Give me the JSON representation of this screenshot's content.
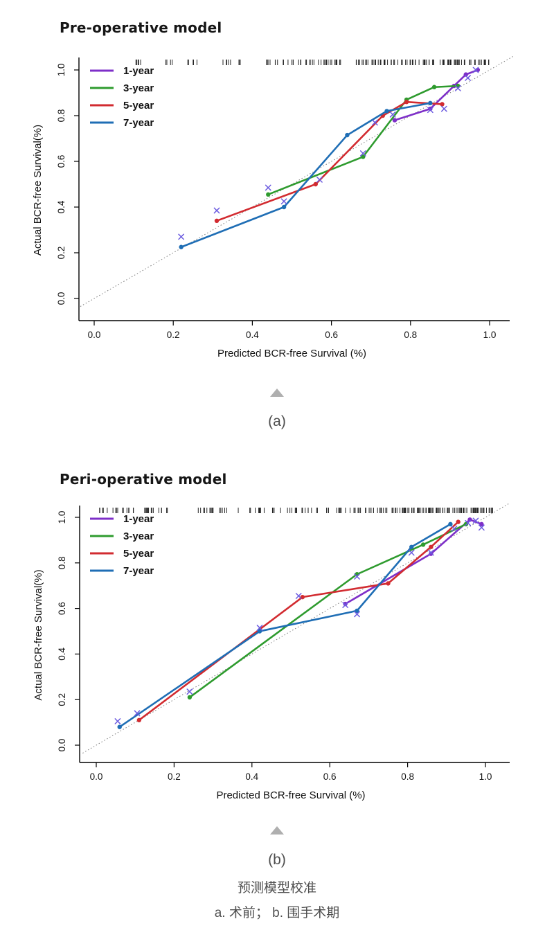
{
  "page": {
    "background": "#ffffff"
  },
  "panels": {
    "a_label": "(a)",
    "b_label": "(b)"
  },
  "caption": {
    "line1": "预测模型校准",
    "line2": "a. 术前； b. 围手术期"
  },
  "chart_data": [
    {
      "id": "pre-operative",
      "type": "line",
      "title": "Pre-operative model",
      "xlabel": "Predicted BCR-free Survival (%)",
      "ylabel": "Actual BCR-free Survival(%)",
      "xlim": [
        0.0,
        1.0
      ],
      "ylim": [
        0.0,
        1.0
      ],
      "xticks": [
        0.0,
        0.2,
        0.4,
        0.6,
        0.8,
        1.0
      ],
      "yticks": [
        0.0,
        0.2,
        0.4,
        0.6,
        0.8,
        1.0
      ],
      "grid": false,
      "legend_position": "top-left",
      "reference_line": "dotted diagonal y=x (ideal calibration)",
      "rug": "tick marks along top edge showing predicted-risk distribution",
      "series": [
        {
          "name": "1-year",
          "color": "#7E2FC8",
          "points": [
            [
              0.76,
              0.78
            ],
            [
              0.85,
              0.83
            ],
            [
              0.91,
              0.93
            ],
            [
              0.94,
              0.98
            ],
            [
              0.97,
              1.0
            ]
          ]
        },
        {
          "name": "3-year",
          "color": "#2E9B2E",
          "points": [
            [
              0.44,
              0.455
            ],
            [
              0.68,
              0.62
            ],
            [
              0.79,
              0.87
            ],
            [
              0.86,
              0.925
            ],
            [
              0.92,
              0.93
            ]
          ]
        },
        {
          "name": "5-year",
          "color": "#D22B30",
          "points": [
            [
              0.31,
              0.34
            ],
            [
              0.56,
              0.5
            ],
            [
              0.73,
              0.8
            ],
            [
              0.79,
              0.86
            ],
            [
              0.88,
              0.85
            ]
          ]
        },
        {
          "name": "7-year",
          "color": "#1F6EB5",
          "points": [
            [
              0.22,
              0.225
            ],
            [
              0.48,
              0.4
            ],
            [
              0.64,
              0.715
            ],
            [
              0.74,
              0.82
            ],
            [
              0.85,
              0.855
            ]
          ]
        }
      ],
      "x_markers": {
        "color": "#6C5CE0",
        "meaning": "apparent (uncorrected) estimates",
        "points": [
          [
            0.22,
            0.27
          ],
          [
            0.31,
            0.385
          ],
          [
            0.44,
            0.485
          ],
          [
            0.48,
            0.425
          ],
          [
            0.57,
            0.52
          ],
          [
            0.68,
            0.635
          ],
          [
            0.71,
            0.77
          ],
          [
            0.755,
            0.805
          ],
          [
            0.85,
            0.825
          ],
          [
            0.885,
            0.83
          ],
          [
            0.92,
            0.92
          ],
          [
            0.945,
            0.965
          ],
          [
            0.965,
            1.0
          ]
        ]
      },
      "rug_clusters": [
        {
          "from": 0.09,
          "to": 0.12,
          "n": 5
        },
        {
          "from": 0.18,
          "to": 0.205,
          "n": 4
        },
        {
          "from": 0.23,
          "to": 0.26,
          "n": 5
        },
        {
          "from": 0.32,
          "to": 0.375,
          "n": 9
        },
        {
          "from": 0.435,
          "to": 0.52,
          "n": 14
        },
        {
          "from": 0.52,
          "to": 0.63,
          "n": 24
        },
        {
          "from": 0.66,
          "to": 0.78,
          "n": 32
        },
        {
          "from": 0.785,
          "to": 1.0,
          "n": 62
        }
      ]
    },
    {
      "id": "peri-operative",
      "type": "line",
      "title": "Peri-operative model",
      "xlabel": "Predicted BCR-free Survival (%)",
      "ylabel": "Actual BCR-free Survival(%)",
      "xlim": [
        0.0,
        1.0
      ],
      "ylim": [
        0.0,
        1.0
      ],
      "xticks": [
        0.0,
        0.2,
        0.4,
        0.6,
        0.8,
        1.0
      ],
      "yticks": [
        0.0,
        0.2,
        0.4,
        0.6,
        0.8,
        1.0
      ],
      "grid": false,
      "legend_position": "top-left",
      "reference_line": "dotted diagonal y=x (ideal calibration)",
      "rug": "tick marks along top edge showing predicted-risk distribution",
      "series": [
        {
          "name": "1-year",
          "color": "#7E2FC8",
          "points": [
            [
              0.64,
              0.62
            ],
            [
              0.86,
              0.84
            ],
            [
              0.96,
              0.99
            ],
            [
              0.99,
              0.97
            ]
          ]
        },
        {
          "name": "3-year",
          "color": "#2E9B2E",
          "points": [
            [
              0.24,
              0.21
            ],
            [
              0.67,
              0.75
            ],
            [
              0.84,
              0.88
            ],
            [
              0.95,
              0.97
            ]
          ]
        },
        {
          "name": "5-year",
          "color": "#D22B30",
          "points": [
            [
              0.11,
              0.11
            ],
            [
              0.53,
              0.65
            ],
            [
              0.75,
              0.71
            ],
            [
              0.86,
              0.87
            ],
            [
              0.93,
              0.98
            ]
          ]
        },
        {
          "name": "7-year",
          "color": "#1F6EB5",
          "points": [
            [
              0.06,
              0.08
            ],
            [
              0.42,
              0.5
            ],
            [
              0.67,
              0.59
            ],
            [
              0.81,
              0.87
            ],
            [
              0.91,
              0.97
            ]
          ]
        }
      ],
      "x_markers": {
        "color": "#6C5CE0",
        "meaning": "apparent (uncorrected) estimates",
        "points": [
          [
            0.055,
            0.105
          ],
          [
            0.105,
            0.14
          ],
          [
            0.24,
            0.235
          ],
          [
            0.42,
            0.515
          ],
          [
            0.52,
            0.655
          ],
          [
            0.64,
            0.615
          ],
          [
            0.67,
            0.575
          ],
          [
            0.67,
            0.74
          ],
          [
            0.81,
            0.845
          ],
          [
            0.86,
            0.845
          ],
          [
            0.92,
            0.95
          ],
          [
            0.955,
            0.975
          ],
          [
            0.975,
            0.985
          ],
          [
            0.99,
            0.955
          ]
        ]
      },
      "rug_clusters": [
        {
          "from": 0.005,
          "to": 0.1,
          "n": 16
        },
        {
          "from": 0.115,
          "to": 0.185,
          "n": 14
        },
        {
          "from": 0.25,
          "to": 0.37,
          "n": 16
        },
        {
          "from": 0.385,
          "to": 0.48,
          "n": 14
        },
        {
          "from": 0.49,
          "to": 0.63,
          "n": 24
        },
        {
          "from": 0.64,
          "to": 0.77,
          "n": 28
        },
        {
          "from": 0.77,
          "to": 0.96,
          "n": 72
        },
        {
          "from": 0.96,
          "to": 1.02,
          "n": 22
        }
      ]
    }
  ]
}
